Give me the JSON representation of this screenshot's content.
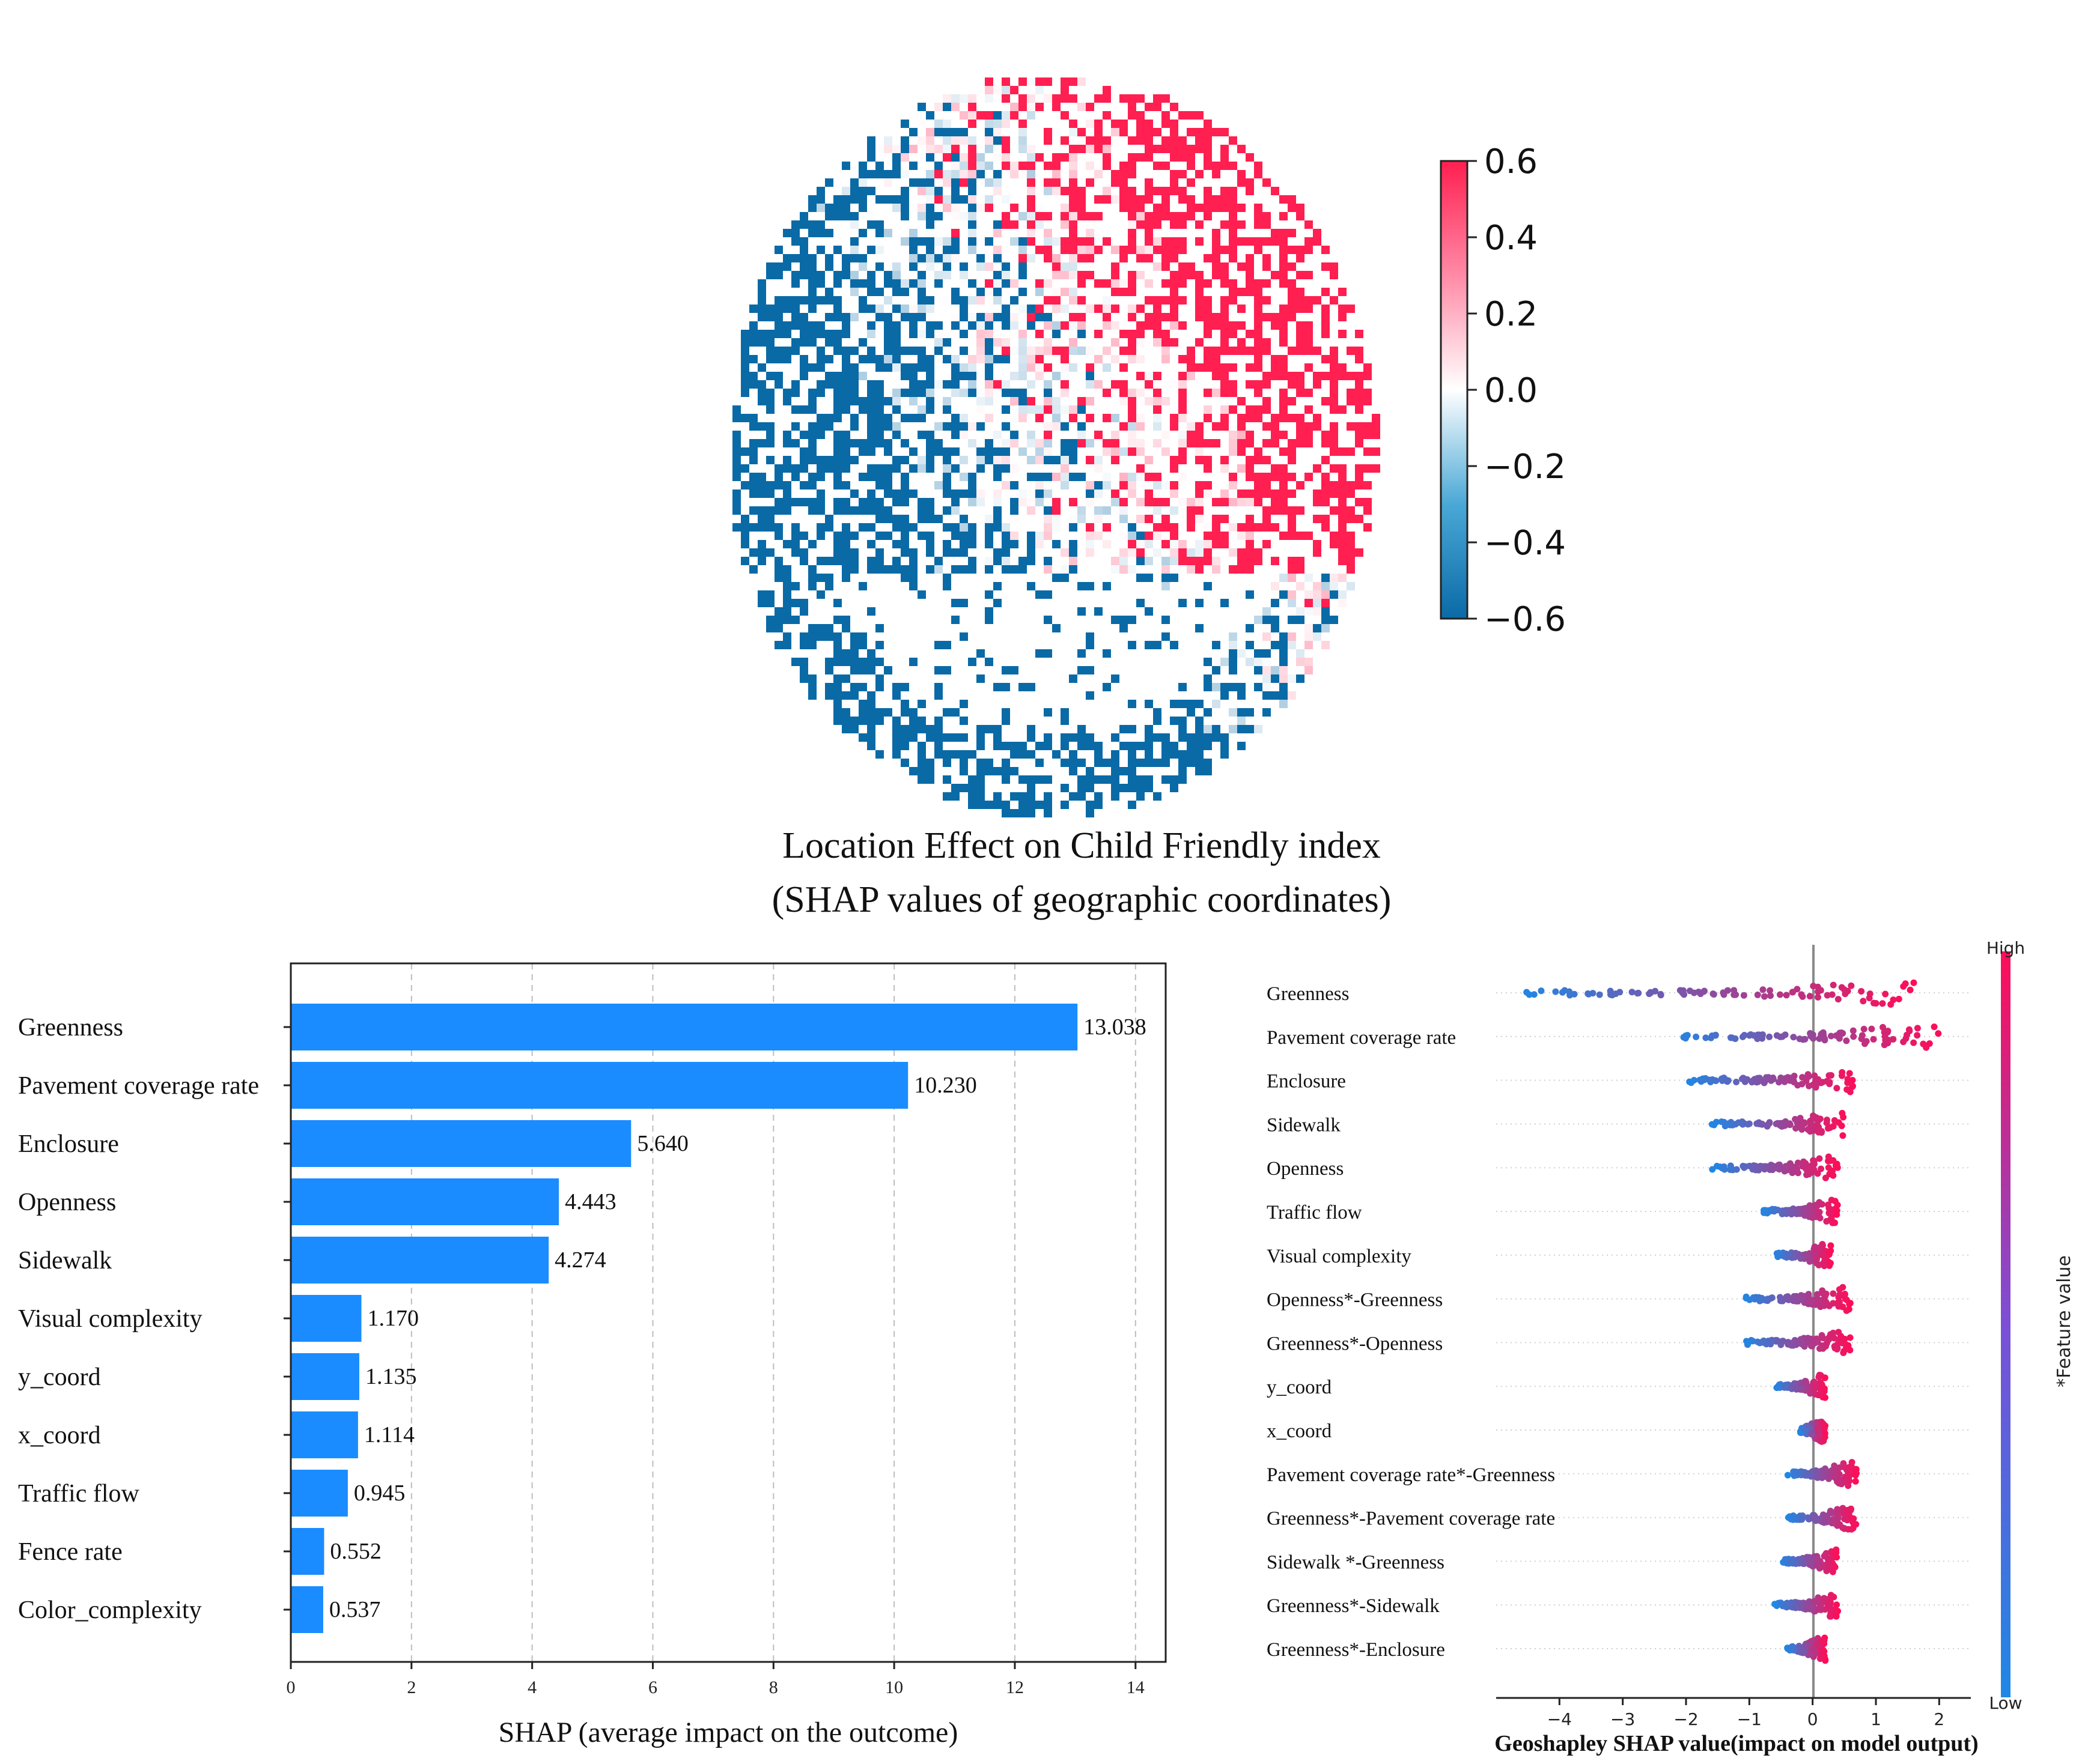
{
  "chart_data": [
    {
      "type": "heatmap",
      "title": "Location Effect on Child Friendly index",
      "subtitle": "(SHAP values of geographic coordinates)",
      "colorbar": {
        "ticks": [
          "0.6",
          "0.4",
          "0.2",
          "0.0",
          "−0.2",
          "−0.4",
          "−0.6"
        ],
        "range": [
          -0.6,
          0.6
        ],
        "low_color": "#0a6aa6",
        "mid_color": "#ffffff",
        "high_color": "#ff1f50"
      },
      "note": "Spatial map of SHAP values: negative (blue) concentrated in west and south, positive (red) concentrated in north-east and east."
    },
    {
      "type": "bar",
      "orientation": "horizontal",
      "categories": [
        "Greenness",
        "Pavement coverage rate",
        "Enclosure",
        "Openness",
        "Sidewalk",
        "Visual complexity",
        "y_coord",
        "x_coord",
        "Traffic flow",
        "Fence rate",
        "Color_complexity"
      ],
      "values": [
        13.038,
        10.23,
        5.64,
        4.443,
        4.274,
        1.17,
        1.135,
        1.114,
        0.945,
        0.552,
        0.537
      ],
      "value_labels": [
        "13.038",
        "10.230",
        "5.640",
        "4.443",
        "4.274",
        "1.170",
        "1.135",
        "1.114",
        "0.945",
        "0.552",
        "0.537"
      ],
      "xlabel": "SHAP (average impact on the outcome)",
      "xlim": [
        0,
        14.5
      ],
      "xticks": [
        0,
        2,
        4,
        6,
        8,
        10,
        12,
        14
      ],
      "xtick_labels": [
        "0",
        "2",
        "4",
        "6",
        "8",
        "10",
        "12",
        "14"
      ],
      "grid": "vertical dashed",
      "bar_color": "#1a8cff"
    },
    {
      "type": "scatter",
      "subtype": "beeswarm",
      "features": [
        "Greenness",
        "Pavement coverage rate",
        "Enclosure",
        "Sidewalk",
        "Openness",
        "Traffic flow",
        "Visual complexity",
        "Openness*-Greenness",
        "Greenness*-Openness",
        "y_coord",
        "x_coord",
        "Pavement coverage rate*-Greenness",
        "Greenness*-Pavement coverage rate",
        "Sidewalk *-Greenness",
        "Greenness*-Sidewalk",
        "Greenness*-Enclosure"
      ],
      "ranges": [
        [
          -4.7,
          1.6
        ],
        [
          -2.3,
          2.0
        ],
        [
          -2.0,
          0.7
        ],
        [
          -1.6,
          0.5
        ],
        [
          -1.6,
          0.4
        ],
        [
          -0.8,
          0.4
        ],
        [
          -0.6,
          0.3
        ],
        [
          -1.1,
          0.6
        ],
        [
          -1.1,
          0.6
        ],
        [
          -0.6,
          0.2
        ],
        [
          -0.2,
          0.2
        ],
        [
          -0.4,
          0.7
        ],
        [
          -0.4,
          0.7
        ],
        [
          -0.5,
          0.4
        ],
        [
          -0.6,
          0.4
        ],
        [
          -0.4,
          0.2
        ]
      ],
      "xlabel": "Geoshapley SHAP value(impact on model output)",
      "xlim": [
        -5.0,
        2.5
      ],
      "xticks": [
        -4,
        -3,
        -2,
        -1,
        0,
        1,
        2
      ],
      "xtick_labels": [
        "−4",
        "−3",
        "−2",
        "−1",
        "0",
        "1",
        "2"
      ],
      "colorbar": {
        "label": "*Feature value",
        "high": "High",
        "low": "Low",
        "low_color": "#1e88e5",
        "high_color": "#ff0d57"
      }
    }
  ]
}
